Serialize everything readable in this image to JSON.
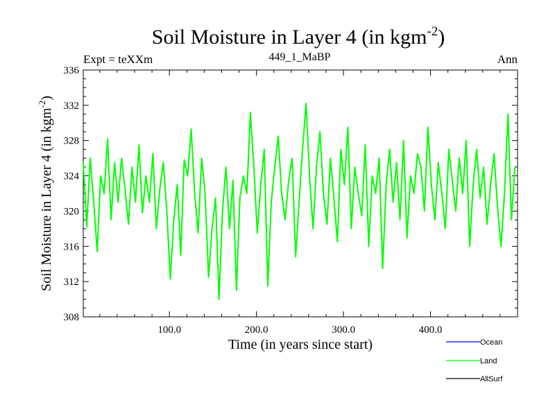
{
  "chart_data": {
    "type": "line",
    "title": "Soil Moisture in Layer 4 (in kgm",
    "title_sup": "-2",
    "title_close": ")",
    "subtitle_left": "Expt = teXXm",
    "subtitle_center": "449_1_MaBP",
    "subtitle_right": "Ann",
    "xlabel": "Time (in years since start)",
    "ylabel": "Soil Moisture in Layer 4 (in kgm",
    "ylabel_sup": "-2",
    "ylabel_close": ")",
    "xlim": [
      1,
      500
    ],
    "ylim": [
      308,
      336
    ],
    "x_ticks": [
      100,
      200,
      300,
      400
    ],
    "x_tick_labels": [
      "100.0",
      "200.0",
      "300.0",
      "400.0"
    ],
    "y_ticks": [
      308,
      312,
      316,
      320,
      324,
      328,
      332,
      336
    ],
    "y_tick_labels": [
      "308",
      "312",
      "316",
      "320",
      "324",
      "328",
      "332",
      "336"
    ],
    "legend": [
      {
        "name": "Ocean",
        "color": "#0000ff"
      },
      {
        "name": "Land",
        "color": "#00ff00"
      },
      {
        "name": "AllSurf",
        "color": "#000000"
      }
    ],
    "series": [
      {
        "name": "Land",
        "color": "#00ff00",
        "x_start": 1,
        "x_step": 4,
        "values": [
          325.5,
          318.2,
          326.0,
          321.0,
          315.4,
          324.0,
          322.0,
          328.2,
          319.0,
          325.5,
          321.0,
          326.0,
          322.5,
          318.5,
          325.0,
          321.0,
          327.5,
          319.8,
          324.0,
          321.0,
          326.5,
          318.0,
          322.5,
          325.5,
          320.0,
          312.3,
          319.0,
          323.0,
          315.0,
          325.8,
          324.0,
          329.3,
          322.0,
          317.5,
          326.0,
          322.0,
          312.5,
          318.0,
          321.5,
          310.0,
          320.0,
          325.0,
          318.0,
          323.5,
          311.0,
          321.5,
          324.0,
          322.0,
          331.2,
          325.0,
          317.5,
          323.0,
          327.0,
          311.5,
          321.0,
          325.0,
          328.5,
          322.0,
          319.0,
          323.5,
          326.0,
          314.8,
          321.0,
          327.0,
          332.2,
          324.0,
          318.0,
          325.0,
          329.0,
          322.0,
          318.5,
          326.0,
          321.5,
          316.5,
          327.0,
          323.0,
          329.5,
          318.0,
          325.0,
          322.0,
          319.5,
          327.5,
          316.0,
          324.0,
          322.0,
          326.0,
          313.5,
          323.0,
          327.0,
          321.0,
          325.5,
          319.0,
          328.0,
          317.0,
          324.0,
          322.0,
          326.5,
          325.0,
          320.0,
          329.5,
          323.0,
          319.0,
          325.5,
          322.0,
          318.0,
          327.0,
          323.5,
          320.0,
          326.0,
          322.0,
          328.0,
          316.0,
          323.0,
          327.0,
          321.5,
          325.0,
          318.5,
          323.0,
          326.5,
          320.5,
          316.0,
          322.0,
          331.0,
          319.0,
          325.0
        ]
      }
    ]
  }
}
